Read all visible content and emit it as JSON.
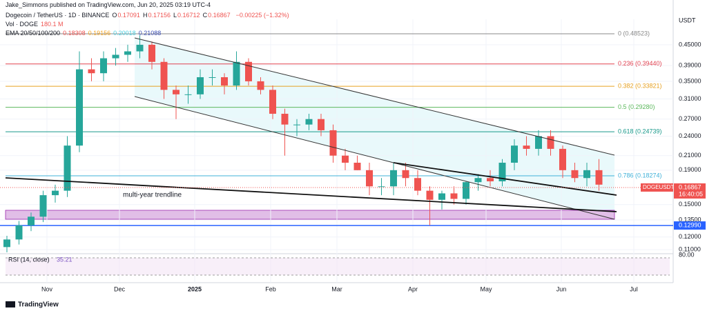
{
  "header": {
    "published": "Jake_Simmons published on TradingView.com, Jun 20, 2025 03:19 UTC-4",
    "symbol": "Dogecoin / TetherUS · 1D · BINANCE",
    "ohlc": [
      {
        "key": "O",
        "value": "0.17091"
      },
      {
        "key": "H",
        "value": "0.17156"
      },
      {
        "key": "L",
        "value": "0.16712"
      },
      {
        "key": "C",
        "value": "0.16867"
      }
    ],
    "change": "−0.00225 (−1.32%)",
    "vol_label": "Vol · DOGE",
    "vol_value": "180.1 M",
    "ema_label": "EMA 20/50/100/200",
    "ema_values": [
      {
        "text": "0.18308",
        "color": "#ef5350"
      },
      {
        "text": "0.19156",
        "color": "#f5a623"
      },
      {
        "text": "0.20018",
        "color": "#4dd0e1"
      },
      {
        "text": "0.21088",
        "color": "#3f51b5"
      }
    ]
  },
  "chart_data": {
    "type": "candlestick",
    "log_scale": true,
    "grid": true,
    "axis_unit": "USDT",
    "up_color": "#26a69a",
    "down_color": "#ef5350",
    "ylim": [
      0.107,
      0.536
    ],
    "yticks": [
      {
        "value": 0.45,
        "label": "0.45000"
      },
      {
        "value": 0.39,
        "label": "0.39000"
      },
      {
        "value": 0.35,
        "label": "0.35000"
      },
      {
        "value": 0.31,
        "label": "0.31000"
      },
      {
        "value": 0.27,
        "label": "0.27000"
      },
      {
        "value": 0.24,
        "label": "0.24000"
      },
      {
        "value": 0.21,
        "label": "0.21000"
      },
      {
        "value": 0.19,
        "label": "0.19000"
      },
      {
        "value": 0.15,
        "label": "0.15000"
      },
      {
        "value": 0.135,
        "label": "0.13500"
      },
      {
        "value": 0.12,
        "label": "0.12000"
      },
      {
        "value": 0.11,
        "label": "0.11000"
      }
    ],
    "x_labels": [
      "Nov",
      "Dec",
      "2025",
      "Feb",
      "Mar",
      "Apr",
      "May",
      "Jun",
      "Jul"
    ],
    "open": [
      0.112,
      0.118,
      0.13,
      0.138,
      0.16,
      0.165,
      0.225,
      0.38,
      0.37,
      0.41,
      0.42,
      0.43,
      0.45,
      0.4,
      0.33,
      0.32,
      0.32,
      0.36,
      0.36,
      0.34,
      0.4,
      0.35,
      0.33,
      0.28,
      0.26,
      0.26,
      0.27,
      0.25,
      0.21,
      0.2,
      0.19,
      0.17,
      0.17,
      0.19,
      0.18,
      0.165,
      0.155,
      0.162,
      0.156,
      0.175,
      0.18,
      0.176,
      0.2,
      0.225,
      0.22,
      0.24,
      0.22,
      0.19,
      0.18,
      0.19
    ],
    "high": [
      0.121,
      0.134,
      0.142,
      0.165,
      0.172,
      0.24,
      0.43,
      0.41,
      0.43,
      0.44,
      0.45,
      0.48,
      0.46,
      0.41,
      0.34,
      0.34,
      0.38,
      0.38,
      0.37,
      0.43,
      0.41,
      0.36,
      0.34,
      0.29,
      0.27,
      0.28,
      0.28,
      0.26,
      0.22,
      0.21,
      0.2,
      0.18,
      0.2,
      0.2,
      0.19,
      0.17,
      0.165,
      0.17,
      0.176,
      0.185,
      0.19,
      0.205,
      0.235,
      0.24,
      0.25,
      0.25,
      0.225,
      0.2,
      0.2,
      0.205
    ],
    "low": [
      0.108,
      0.114,
      0.125,
      0.133,
      0.152,
      0.158,
      0.215,
      0.35,
      0.35,
      0.39,
      0.4,
      0.41,
      0.38,
      0.31,
      0.27,
      0.3,
      0.31,
      0.34,
      0.32,
      0.33,
      0.34,
      0.32,
      0.27,
      0.21,
      0.24,
      0.25,
      0.24,
      0.2,
      0.19,
      0.19,
      0.16,
      0.16,
      0.16,
      0.17,
      0.16,
      0.13,
      0.145,
      0.15,
      0.15,
      0.165,
      0.17,
      0.17,
      0.19,
      0.21,
      0.21,
      0.21,
      0.18,
      0.175,
      0.17,
      0.165
    ],
    "close": [
      0.118,
      0.13,
      0.138,
      0.16,
      0.165,
      0.225,
      0.38,
      0.37,
      0.41,
      0.42,
      0.43,
      0.45,
      0.4,
      0.33,
      0.32,
      0.32,
      0.36,
      0.36,
      0.34,
      0.4,
      0.35,
      0.33,
      0.28,
      0.26,
      0.26,
      0.27,
      0.25,
      0.21,
      0.2,
      0.19,
      0.17,
      0.17,
      0.19,
      0.18,
      0.165,
      0.155,
      0.162,
      0.156,
      0.175,
      0.18,
      0.176,
      0.2,
      0.225,
      0.22,
      0.24,
      0.22,
      0.19,
      0.18,
      0.19,
      0.172
    ],
    "fib_levels": [
      {
        "label": "0 (0.48523)",
        "value": 0.48523,
        "color": "#888888"
      },
      {
        "label": "0.236 (0.39440)",
        "value": 0.3944,
        "color": "#e0404f"
      },
      {
        "label": "0.382 (0.33821)",
        "value": 0.33821,
        "color": "#e6a020"
      },
      {
        "label": "0.5 (0.29280)",
        "value": 0.2928,
        "color": "#5cb85c"
      },
      {
        "label": "0.618 (0.24739)",
        "value": 0.24739,
        "color": "#16988a"
      },
      {
        "label": "0.786 (0.18274)",
        "value": 0.18274,
        "color": "#3fb0d8"
      }
    ],
    "support": {
      "value": 0.1299,
      "label": "0.12990",
      "color": "#2962ff"
    },
    "last_price": {
      "symbol": "DOGEUSDT",
      "value": 0.16867,
      "label": "0.16867",
      "countdown": "16:40:05",
      "color": "#ef5350"
    },
    "annotation": "multi-year trendline",
    "rsi": {
      "label": "RSI (14, close)",
      "value_label": "35.21",
      "tick": "80.00"
    }
  },
  "footer": {
    "brand": "TradingView"
  }
}
